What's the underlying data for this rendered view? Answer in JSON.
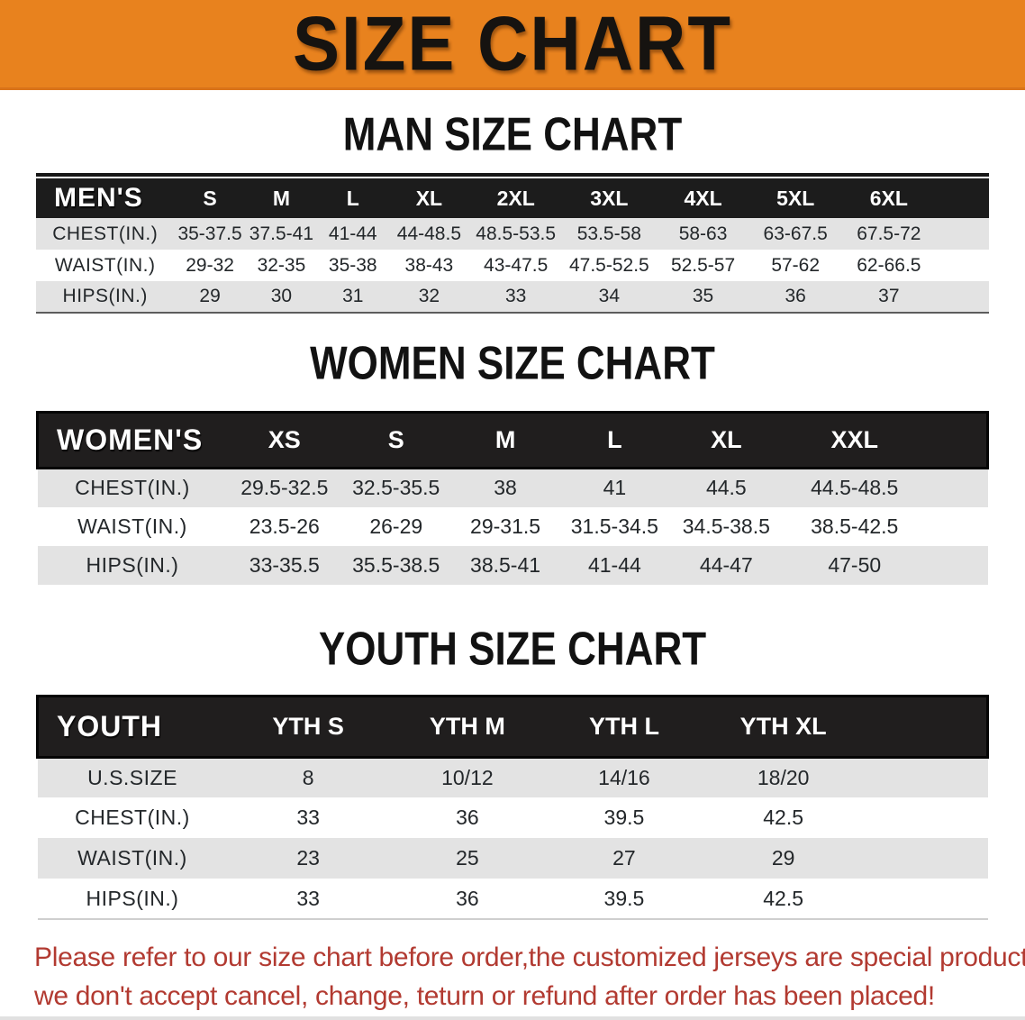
{
  "banner": {
    "title": "SIZE CHART",
    "bg_color": "#e8821e",
    "text_color": "#161310"
  },
  "colors": {
    "header_band": "#1c1c1c",
    "row_shaded": "#e3e3e3",
    "row_plain": "#ffffff",
    "footer_text": "#b23a31"
  },
  "sections": [
    {
      "heading": "MAN SIZE CHART",
      "label": "MEN'S",
      "columns": [
        "S",
        "M",
        "L",
        "XL",
        "2XL",
        "3XL",
        "4XL",
        "5XL",
        "6XL"
      ],
      "rows": [
        {
          "label": "CHEST(IN.)",
          "values": [
            "35-37.5",
            "37.5-41",
            "41-44",
            "44-48.5",
            "48.5-53.5",
            "53.5-58",
            "58-63",
            "63-67.5",
            "67.5-72"
          ]
        },
        {
          "label": "WAIST(IN.)",
          "values": [
            "29-32",
            "32-35",
            "35-38",
            "38-43",
            "43-47.5",
            "47.5-52.5",
            "52.5-57",
            "57-62",
            "62-66.5"
          ]
        },
        {
          "label": "HIPS(IN.)",
          "values": [
            "29",
            "30",
            "31",
            "32",
            "33",
            "34",
            "35",
            "36",
            "37"
          ]
        }
      ]
    },
    {
      "heading": "WOMEN SIZE CHART",
      "label": "WOMEN'S",
      "columns": [
        "XS",
        "S",
        "M",
        "L",
        "XL",
        "XXL"
      ],
      "rows": [
        {
          "label": "CHEST(IN.)",
          "values": [
            "29.5-32.5",
            "32.5-35.5",
            "38",
            "41",
            "44.5",
            "44.5-48.5"
          ]
        },
        {
          "label": "WAIST(IN.)",
          "values": [
            "23.5-26",
            "26-29",
            "29-31.5",
            "31.5-34.5",
            "34.5-38.5",
            "38.5-42.5"
          ]
        },
        {
          "label": "HIPS(IN.)",
          "values": [
            "33-35.5",
            "35.5-38.5",
            "38.5-41",
            "41-44",
            "44-47",
            "47-50"
          ]
        }
      ]
    },
    {
      "heading": "YOUTH SIZE CHART",
      "label": "YOUTH",
      "columns": [
        "YTH S",
        "YTH M",
        "YTH L",
        "YTH XL"
      ],
      "rows": [
        {
          "label": "U.S.SIZE",
          "values": [
            "8",
            "10/12",
            "14/16",
            "18/20"
          ]
        },
        {
          "label": "CHEST(IN.)",
          "values": [
            "33",
            "36",
            "39.5",
            "42.5"
          ]
        },
        {
          "label": "WAIST(IN.)",
          "values": [
            "23",
            "25",
            "27",
            "29"
          ]
        },
        {
          "label": "HIPS(IN.)",
          "values": [
            "33",
            "36",
            "39.5",
            "42.5"
          ]
        }
      ]
    }
  ],
  "footer": {
    "line1": "Please refer to our size chart before order,the customized jerseys are special products,",
    "line2": "we don't accept cancel, change, teturn or refund after order has been placed!"
  }
}
